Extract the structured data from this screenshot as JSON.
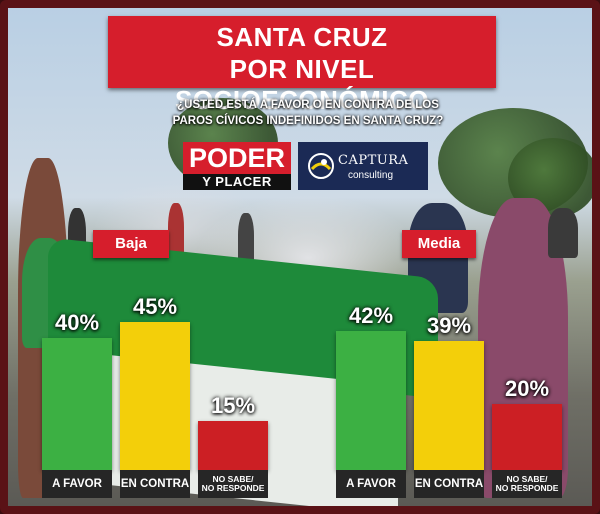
{
  "header": {
    "title_line1": "SANTA CRUZ",
    "title_line2": "POR NIVEL SOCIOECONÓMICO",
    "question_line1": "¿USTED ESTÁ A FAVOR O EN CONTRA DE LOS",
    "question_line2": "PAROS CÍVICOS INDEFINIDOS EN SANTA CRUZ?"
  },
  "logos": {
    "poder_top": "PODER",
    "poder_bottom": "Y PLACER",
    "captura_name": "CAPTURA",
    "captura_sub": "consulting"
  },
  "colors": {
    "title_red": "#d61e2c",
    "bar_green": "#3cb043",
    "bar_yellow": "#f3cf0a",
    "bar_red": "#cc1f24",
    "label_dark": "#262626"
  },
  "chart_data": {
    "type": "bar",
    "title": "SANTA CRUZ POR NIVEL SOCIOECONÓMICO",
    "subtitle": "¿USTED ESTÁ A FAVOR O EN CONTRA DE LOS PAROS CÍVICOS INDEFINIDOS EN SANTA CRUZ?",
    "unit": "%",
    "categories": [
      "A FAVOR",
      "EN CONTRA",
      "NO SABE/ NO RESPONDE"
    ],
    "category_lines": [
      [
        "A FAVOR"
      ],
      [
        "EN CONTRA"
      ],
      [
        "NO SABE/",
        "NO RESPONDE"
      ]
    ],
    "ylim": [
      0,
      45
    ],
    "grid": false,
    "groups": [
      {
        "name": "Baja",
        "values": [
          40,
          45,
          15
        ],
        "labels": [
          "40%",
          "45%",
          "15%"
        ]
      },
      {
        "name": "Media",
        "values": [
          42,
          39,
          20
        ],
        "labels": [
          "42%",
          "39%",
          "20%"
        ]
      }
    ]
  }
}
